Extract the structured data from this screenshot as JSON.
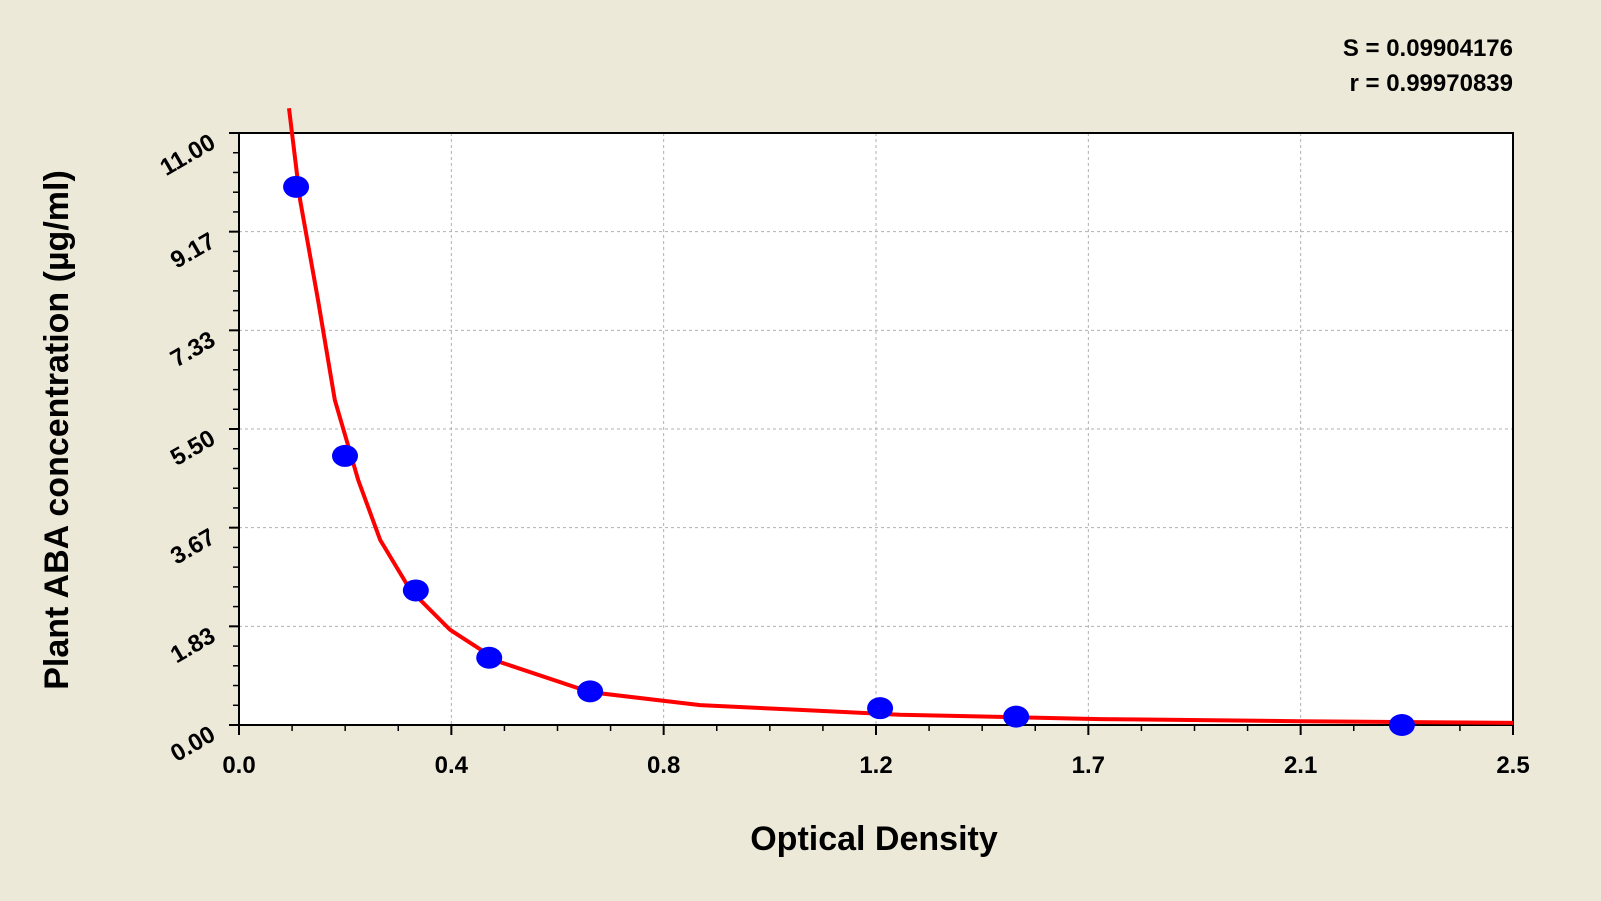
{
  "chart_data": {
    "type": "scatter",
    "annotations": [
      "S = 0.09904176",
      "r = 0.99970839"
    ],
    "x_label": "Optical Density",
    "y_label": "Plant ABA concentration (µg/ml)",
    "xlim": [
      0,
      2.5
    ],
    "ylim": [
      0,
      11
    ],
    "xticks": [
      {
        "value": 0,
        "label": "0.0"
      },
      {
        "value": 0.4167,
        "label": "0.4"
      },
      {
        "value": 0.8333,
        "label": "0.8"
      },
      {
        "value": 1.25,
        "label": "1.2"
      },
      {
        "value": 1.6667,
        "label": "1.7"
      },
      {
        "value": 2.0833,
        "label": "2.1"
      },
      {
        "value": 2.5,
        "label": "2.5"
      }
    ],
    "yticks": [
      {
        "value": 0,
        "label": "0.00"
      },
      {
        "value": 1.8333,
        "label": "1.83"
      },
      {
        "value": 3.6667,
        "label": "3.67"
      },
      {
        "value": 5.5,
        "label": "5.50"
      },
      {
        "value": 7.3333,
        "label": "7.33"
      },
      {
        "value": 9.1667,
        "label": "9.17"
      },
      {
        "value": 11,
        "label": "11.00"
      }
    ],
    "x_minor_divisions": 4,
    "y_minor_divisions": 5,
    "grid": true,
    "series": [
      {
        "marker": "circle",
        "color": "#0000ff",
        "x": [
          0.112,
          0.208,
          0.347,
          0.491,
          0.689,
          1.258,
          1.525,
          2.282
        ],
        "values": [
          10,
          5,
          2.5,
          1.25,
          0.625,
          0.3125,
          0.156,
          0
        ]
      },
      {
        "marker": "line",
        "color": "#ff0000",
        "x": [
          0.0981,
          0.12,
          0.155,
          0.188,
          0.234,
          0.277,
          0.336,
          0.414,
          0.512,
          0.689,
          0.905,
          1.101,
          1.297,
          1.493,
          1.69,
          2.082,
          2.5
        ],
        "values": [
          11.46,
          9.75,
          7.9,
          6.04,
          4.55,
          3.44,
          2.51,
          1.77,
          1.17,
          0.61,
          0.37,
          0.28,
          0.19,
          0.15,
          0.11,
          0.07,
          0.04
        ]
      }
    ]
  }
}
